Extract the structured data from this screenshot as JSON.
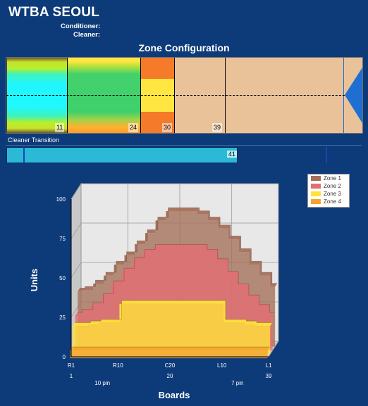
{
  "header": {
    "title": "WTBA SEOUL",
    "conditioner_label": "Conditioner:",
    "cleaner_label": "Cleaner:"
  },
  "zone_config": {
    "title": "Zone Configuration",
    "boundaries": [
      "11",
      "24",
      "30",
      "39"
    ],
    "colors": {
      "background": "#e9c29a",
      "zone1": "#c08a6e",
      "zone2": "#e0716e",
      "zone3": "#ffe54a",
      "zone4": "#f4a23a",
      "pin_deck": "#1e6fd0"
    }
  },
  "cleaner_transition": {
    "label": "Cleaner Transition",
    "value": "41"
  },
  "chart_data": {
    "type": "area",
    "style": "3d",
    "title": "",
    "xlabel": "Boards",
    "ylabel": "Units",
    "ylim": [
      0,
      100
    ],
    "yticks": [
      "0",
      "25",
      "50",
      "75",
      "100"
    ],
    "x_tick_labels": [
      "R1",
      "R10",
      "C20",
      "L10",
      "L1"
    ],
    "x_board_numbers": [
      "1",
      "20",
      "39"
    ],
    "x_pin_labels": [
      "10 pin",
      "7 pin"
    ],
    "grid": true,
    "legend_position": "top-right",
    "x": [
      1,
      3,
      5,
      7,
      9,
      11,
      13,
      15,
      17,
      19,
      21,
      23,
      25,
      27,
      29,
      31,
      33,
      35,
      37,
      39
    ],
    "series": [
      {
        "name": "Zone 1",
        "color": "#a5705a",
        "values": [
          35,
          36,
          40,
          45,
          52,
          58,
          65,
          72,
          80,
          86,
          86,
          86,
          84,
          80,
          75,
          68,
          60,
          52,
          45,
          38
        ]
      },
      {
        "name": "Zone 2",
        "color": "#e36f73",
        "values": [
          22,
          24,
          28,
          34,
          42,
          50,
          57,
          62,
          65,
          65,
          65,
          65,
          65,
          62,
          56,
          48,
          40,
          33,
          27,
          22
        ]
      },
      {
        "name": "Zone 3",
        "color": "#ffe33a",
        "values": [
          18,
          18,
          19,
          20,
          20,
          32,
          32,
          32,
          32,
          32,
          32,
          32,
          32,
          32,
          32,
          20,
          20,
          19,
          18,
          18
        ]
      },
      {
        "name": "Zone 4",
        "color": "#f3a52e",
        "values": [
          5,
          5,
          5,
          5,
          5,
          5,
          5,
          5,
          5,
          5,
          5,
          5,
          5,
          5,
          5,
          5,
          5,
          5,
          5,
          5
        ]
      }
    ]
  }
}
